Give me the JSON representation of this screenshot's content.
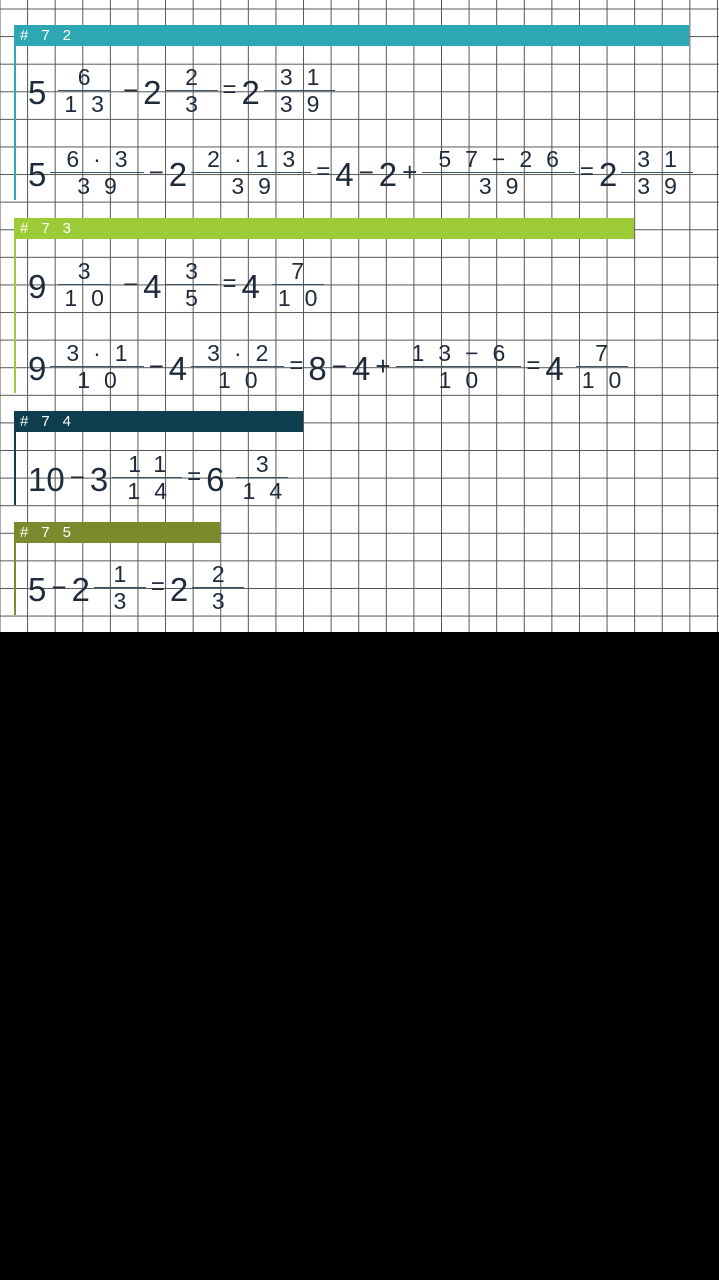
{
  "problems": [
    {
      "label": "#72",
      "color": "#2ea7b5",
      "lines": [
        [
          {
            "w": "5"
          },
          {
            "n": "6",
            "d": "13"
          },
          {
            "op": "−"
          },
          {
            "w": "2"
          },
          {
            "n": "2",
            "d": "3"
          },
          {
            "eq": "="
          },
          {
            "w": "2"
          },
          {
            "n": "31",
            "d": "39"
          }
        ],
        [
          {
            "w": "5"
          },
          {
            "n": "6·3",
            "d": "39"
          },
          {
            "op": "−"
          },
          {
            "w": "2"
          },
          {
            "n": "2·13",
            "d": "39"
          },
          {
            "eq": "="
          },
          {
            "w": "4"
          },
          {
            "op": "−"
          },
          {
            "w": "2"
          },
          {
            "op": "+"
          },
          {
            "n": "57−26",
            "d": "39"
          },
          {
            "eq": "="
          },
          {
            "w": "2"
          },
          {
            "n": "31",
            "d": "39"
          }
        ]
      ]
    },
    {
      "label": "#73",
      "color": "#9dcb38",
      "lines": [
        [
          {
            "w": "9"
          },
          {
            "n": "3",
            "d": "10"
          },
          {
            "op": "−"
          },
          {
            "w": "4"
          },
          {
            "n": "3",
            "d": "5"
          },
          {
            "eq": "="
          },
          {
            "w": "4"
          },
          {
            "n": "7",
            "d": "10"
          }
        ],
        [
          {
            "w": "9"
          },
          {
            "n": "3·1",
            "d": "10"
          },
          {
            "op": "−"
          },
          {
            "w": "4"
          },
          {
            "n": "3·2",
            "d": "10"
          },
          {
            "eq": "="
          },
          {
            "w": "8"
          },
          {
            "op": "−"
          },
          {
            "w": "4"
          },
          {
            "op": "+"
          },
          {
            "n": "13−6",
            "d": "10"
          },
          {
            "eq": "="
          },
          {
            "w": "4"
          },
          {
            "n": "7",
            "d": "10"
          }
        ]
      ]
    },
    {
      "label": "#74",
      "color": "#0e3d4d",
      "lines": [
        [
          {
            "w": "10"
          },
          {
            "op": "−"
          },
          {
            "w": "3"
          },
          {
            "n": "11",
            "d": "14"
          },
          {
            "eq": "="
          },
          {
            "w": "6"
          },
          {
            "n": "3",
            "d": "14"
          }
        ]
      ]
    },
    {
      "label": "#75",
      "color": "#7b8a2c",
      "lines": [
        [
          {
            "w": "5"
          },
          {
            "op": "−"
          },
          {
            "w": "2"
          },
          {
            "n": "1",
            "d": "3"
          },
          {
            "eq": "="
          },
          {
            "w": "2"
          },
          {
            "n": "2",
            "d": "3"
          }
        ]
      ]
    }
  ]
}
